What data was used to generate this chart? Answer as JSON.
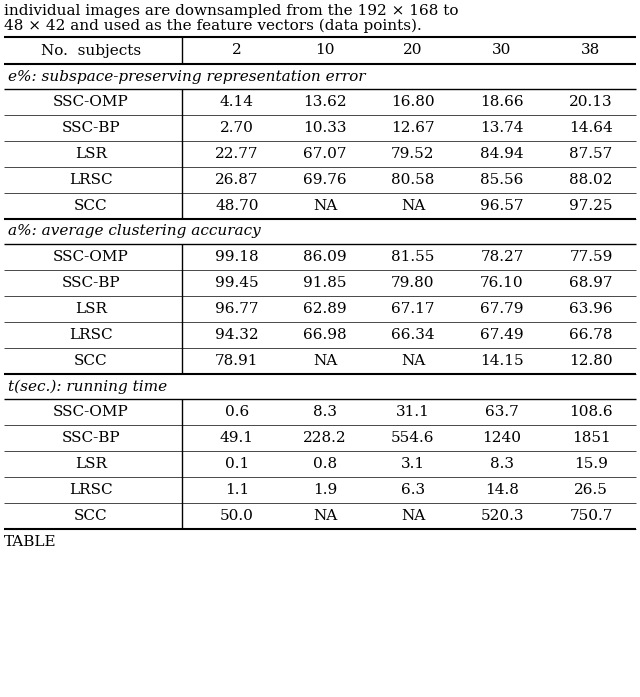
{
  "header_row": [
    "No.  subjects",
    "2",
    "10",
    "20",
    "30",
    "38"
  ],
  "section1_header": "e%: subspace-preserving representation error",
  "section1_rows": [
    [
      "SSC-OMP",
      "4.14",
      "13.62",
      "16.80",
      "18.66",
      "20.13"
    ],
    [
      "SSC-BP",
      "2.70",
      "10.33",
      "12.67",
      "13.74",
      "14.64"
    ],
    [
      "LSR",
      "22.77",
      "67.07",
      "79.52",
      "84.94",
      "87.57"
    ],
    [
      "LRSC",
      "26.87",
      "69.76",
      "80.58",
      "85.56",
      "88.02"
    ],
    [
      "SCC",
      "48.70",
      "NA",
      "NA",
      "96.57",
      "97.25"
    ]
  ],
  "section2_header": "a%: average clustering accuracy",
  "section2_rows": [
    [
      "SSC-OMP",
      "99.18",
      "86.09",
      "81.55",
      "78.27",
      "77.59"
    ],
    [
      "SSC-BP",
      "99.45",
      "91.85",
      "79.80",
      "76.10",
      "68.97"
    ],
    [
      "LSR",
      "96.77",
      "62.89",
      "67.17",
      "67.79",
      "63.96"
    ],
    [
      "LRSC",
      "94.32",
      "66.98",
      "66.34",
      "67.49",
      "66.78"
    ],
    [
      "SCC",
      "78.91",
      "NA",
      "NA",
      "14.15",
      "12.80"
    ]
  ],
  "section3_header": "t(sec.): running time",
  "section3_rows": [
    [
      "SSC-OMP",
      "0.6",
      "8.3",
      "31.1",
      "63.7",
      "108.6"
    ],
    [
      "SSC-BP",
      "49.1",
      "228.2",
      "554.6",
      "1240",
      "1851"
    ],
    [
      "LSR",
      "0.1",
      "0.8",
      "3.1",
      "8.3",
      "15.9"
    ],
    [
      "LRSC",
      "1.1",
      "1.9",
      "6.3",
      "14.8",
      "26.5"
    ],
    [
      "SCC",
      "50.0",
      "NA",
      "NA",
      "520.3",
      "750.7"
    ]
  ],
  "top_text1": "individual images are downsampled from the 192 × 168 to",
  "top_text2": "48 × 42 and used as the feature vectors (data points).",
  "bottom_text": "TABLE",
  "bg_color": "#ffffff",
  "text_color": "#000000",
  "font_size": 11.0
}
